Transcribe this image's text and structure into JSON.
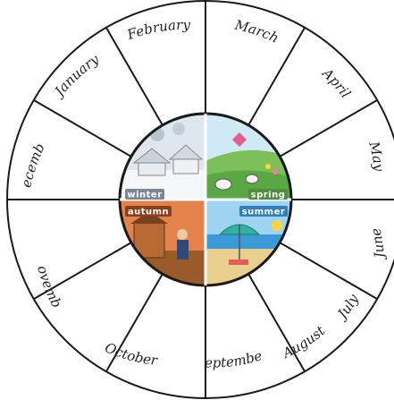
{
  "months": [
    "January",
    "February",
    "March",
    "April",
    "May",
    "June",
    "July",
    "August",
    "September",
    "October",
    "November",
    "December"
  ],
  "seasons": {
    "winter": "winter",
    "spring": "spring",
    "summer": "summer",
    "autumn": "autumn"
  },
  "colors": {
    "outline": "#1a1a1a",
    "winter_sky": "#dfe7ee",
    "spring_sky": "#cfe9f6",
    "spring_grass": "#7cc05a",
    "summer_sky": "#9fd3f2",
    "summer_sea": "#3a9ad8",
    "summer_sand": "#e8cf8e",
    "autumn_sky": "#e3824a",
    "autumn_ground": "#9a5a2a"
  }
}
